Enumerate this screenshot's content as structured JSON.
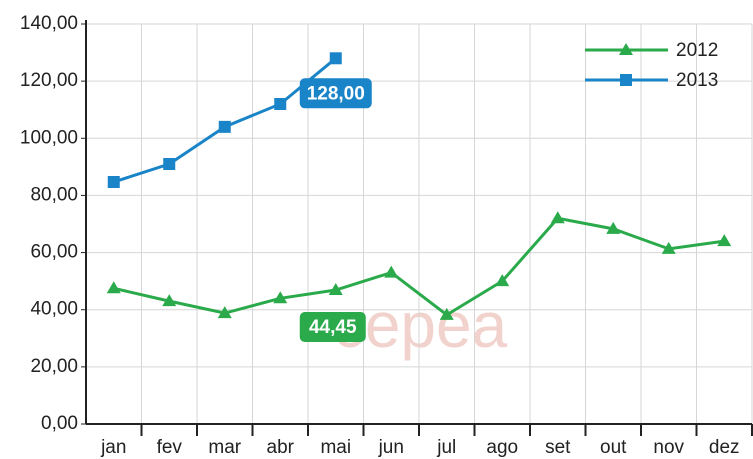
{
  "chart_data": {
    "type": "line",
    "categories": [
      "jan",
      "fev",
      "mar",
      "abr",
      "mai",
      "jun",
      "jul",
      "ago",
      "set",
      "out",
      "nov",
      "dez"
    ],
    "series": [
      {
        "name": "2012",
        "color": "#2aaa4a",
        "marker": "triangle",
        "values": [
          47.5,
          43,
          38.8,
          44,
          46.9,
          53,
          38.2,
          50,
          72,
          68.3,
          61.3,
          64
        ]
      },
      {
        "name": "2013",
        "color": "#1a84c8",
        "marker": "square",
        "values": [
          84.7,
          91,
          104,
          112,
          128,
          null,
          null,
          null,
          null,
          null,
          null,
          null
        ],
        "value_labels": [
          null,
          null,
          null,
          null,
          "128,00",
          null,
          null,
          null,
          null,
          null,
          null,
          null
        ]
      }
    ],
    "annotations": [
      {
        "text": "44,45",
        "color": "#2aaa4a"
      }
    ],
    "watermark": "cepea",
    "ylim": [
      0,
      140
    ],
    "yticks": [
      {
        "value": 0,
        "label": "0,00"
      },
      {
        "value": 20,
        "label": "20,00"
      },
      {
        "value": 40,
        "label": "40,00"
      },
      {
        "value": 60,
        "label": "60,00"
      },
      {
        "value": 80,
        "label": "80,00"
      },
      {
        "value": 100,
        "label": "100,00"
      },
      {
        "value": 120,
        "label": "120,00"
      },
      {
        "value": 140,
        "label": "140,00"
      }
    ],
    "grid": true,
    "legend": "top-right"
  }
}
